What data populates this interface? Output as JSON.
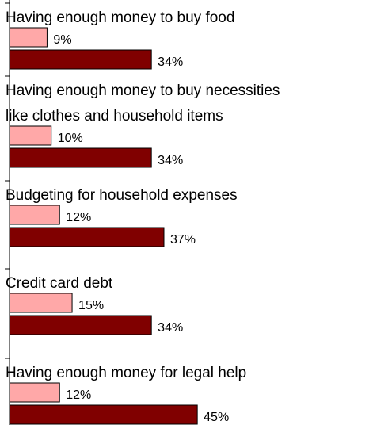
{
  "chart_data": {
    "type": "bar",
    "orientation": "horizontal",
    "categories": [
      [
        "Having enough money to buy food"
      ],
      [
        "Having enough money to buy necessities",
        "like clothes and household items"
      ],
      [
        "Budgeting for household expenses"
      ],
      [
        "Credit card debt"
      ],
      [
        "Having enough money for legal help"
      ]
    ],
    "series": [
      {
        "values": [
          9,
          10,
          12,
          15,
          12
        ],
        "labels": [
          "9%",
          "10%",
          "12%",
          "15%",
          "12%"
        ],
        "color": "#ffa8a8"
      },
      {
        "values": [
          34,
          34,
          37,
          34,
          45
        ],
        "labels": [
          "34%",
          "34%",
          "37%",
          "34%",
          "45%"
        ],
        "color": "#800000"
      }
    ],
    "value_suffix": "%",
    "legend": "none",
    "grid": false
  }
}
